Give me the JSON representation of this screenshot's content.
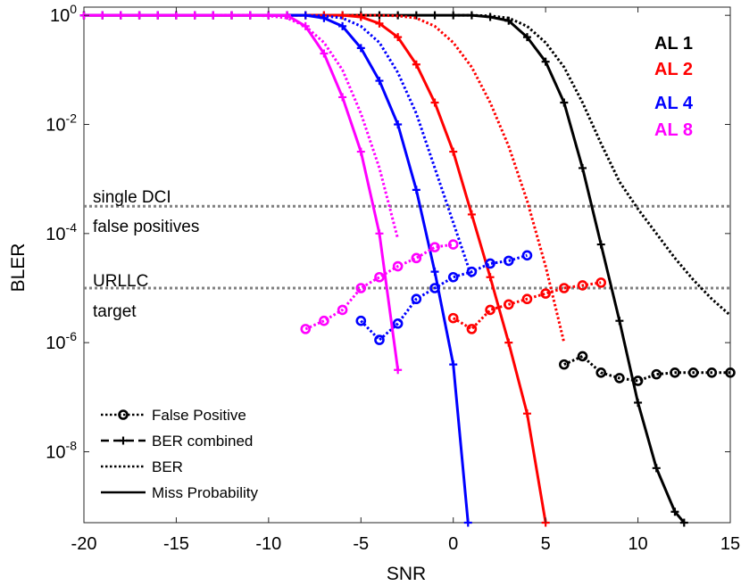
{
  "chart_data": {
    "type": "line",
    "title": "",
    "xlabel": "SNR",
    "ylabel": "BLER",
    "xlim": [
      -20,
      15
    ],
    "ylim_log10": [
      -9.3,
      0.15
    ],
    "yscale": "log",
    "grid": false,
    "x_ticks": [
      {
        "value": -20,
        "label": "-20"
      },
      {
        "value": -15,
        "label": "-15"
      },
      {
        "value": -10,
        "label": "-10"
      },
      {
        "value": -5,
        "label": "-5"
      },
      {
        "value": 0,
        "label": "0"
      },
      {
        "value": 5,
        "label": "5"
      },
      {
        "value": 10,
        "label": "10"
      },
      {
        "value": 15,
        "label": "15"
      }
    ],
    "y_ticks": [
      {
        "exp": 0,
        "base": "10",
        "sup": "0"
      },
      {
        "exp": -2,
        "base": "10",
        "sup": "-2"
      },
      {
        "exp": -4,
        "base": "10",
        "sup": "-4"
      },
      {
        "exp": -6,
        "base": "10",
        "sup": "-6"
      },
      {
        "exp": -8,
        "base": "10",
        "sup": "-8"
      }
    ],
    "colors": {
      "AL 1": "#000000",
      "AL 2": "#ff0000",
      "AL 4": "#0000ff",
      "AL 8": "#ff00ff",
      "reference": "#808080"
    },
    "aggregation_legend": {
      "position": "top-right",
      "entries": [
        {
          "label": "AL 1",
          "color": "#000000"
        },
        {
          "label": "AL 2",
          "color": "#ff0000"
        },
        {
          "label": "AL 4",
          "color": "#0000ff"
        },
        {
          "label": "AL 8",
          "color": "#ff00ff"
        }
      ]
    },
    "style_legend": {
      "position": "bottom-left",
      "entries": [
        {
          "label": "False Positive",
          "dash": "dotted",
          "marker": "circle"
        },
        {
          "label": "BER combined",
          "dash": "dashed",
          "marker": "plus"
        },
        {
          "label": "BER",
          "dash": "dotted",
          "marker": "none"
        },
        {
          "label": "Miss Probability",
          "dash": "solid",
          "marker": "none"
        }
      ]
    },
    "reference_lines": [
      {
        "y_log10": -3.5,
        "label_above": "single DCI",
        "label_below": "false positives"
      },
      {
        "y_log10": -5.0,
        "label_above": "URLLC",
        "label_below": "target"
      }
    ],
    "series": [
      {
        "name": "AL 1",
        "kind": "Miss Probability",
        "color": "#000000",
        "marker": "plus",
        "x": [
          -20,
          -19,
          -18,
          -17,
          -16,
          -15,
          -14,
          -13,
          -12,
          -11,
          -10,
          -9,
          -8,
          -7,
          -6,
          -5,
          -4,
          -3,
          -2,
          -1,
          0,
          1,
          2,
          3,
          4,
          5,
          6,
          7,
          8,
          9,
          10,
          11,
          12,
          12.5
        ],
        "y_log10": [
          0,
          0,
          0,
          0,
          0,
          0,
          0,
          0,
          0,
          0,
          0,
          0,
          0,
          0,
          0,
          0,
          0,
          0,
          0,
          0,
          0,
          0,
          -0.03,
          -0.1,
          -0.4,
          -0.85,
          -1.6,
          -2.8,
          -4.2,
          -5.6,
          -7.1,
          -8.3,
          -9.1,
          -9.3
        ]
      },
      {
        "name": "AL 1",
        "kind": "BER",
        "color": "#000000",
        "marker": "none",
        "x": [
          0,
          1,
          2,
          3,
          4,
          5,
          6,
          7,
          8,
          9,
          10,
          11,
          12,
          13,
          14,
          15
        ],
        "y_log10": [
          0,
          0,
          -0.01,
          -0.05,
          -0.2,
          -0.5,
          -0.95,
          -1.6,
          -2.35,
          -3.05,
          -3.55,
          -4.0,
          -4.45,
          -4.85,
          -5.2,
          -5.5
        ]
      },
      {
        "name": "AL 1",
        "kind": "False Positive",
        "color": "#000000",
        "marker": "circle",
        "x": [
          6,
          7,
          8,
          9,
          10,
          11,
          12,
          13,
          14,
          15
        ],
        "y_log10": [
          -6.4,
          -6.25,
          -6.55,
          -6.65,
          -6.7,
          -6.58,
          -6.55,
          -6.55,
          -6.55,
          -6.55
        ]
      },
      {
        "name": "AL 2",
        "kind": "Miss Probability",
        "color": "#ff0000",
        "marker": "plus",
        "x": [
          -20,
          -19,
          -18,
          -17,
          -16,
          -15,
          -14,
          -13,
          -12,
          -11,
          -10,
          -9,
          -8,
          -7,
          -6,
          -5,
          -4,
          -3,
          -2,
          -1,
          0,
          1,
          2,
          3,
          4,
          5
        ],
        "y_log10": [
          0,
          0,
          0,
          0,
          0,
          0,
          0,
          0,
          0,
          0,
          0,
          0,
          0,
          0,
          0,
          -0.03,
          -0.15,
          -0.4,
          -0.9,
          -1.6,
          -2.5,
          -3.65,
          -4.8,
          -6.0,
          -7.3,
          -9.3
        ]
      },
      {
        "name": "AL 2",
        "kind": "BER",
        "color": "#ff0000",
        "marker": "none",
        "x": [
          -6,
          -5,
          -4,
          -3,
          -2,
          -1,
          0,
          1,
          2,
          3,
          4,
          5,
          6
        ],
        "y_log10": [
          0,
          0,
          0,
          -0.01,
          -0.05,
          -0.2,
          -0.5,
          -0.95,
          -1.6,
          -2.4,
          -3.4,
          -4.6,
          -6.0
        ]
      },
      {
        "name": "AL 2",
        "kind": "False Positive",
        "color": "#ff0000",
        "marker": "circle",
        "x": [
          0,
          1,
          2,
          3,
          4,
          5,
          6,
          7,
          8
        ],
        "y_log10": [
          -5.55,
          -5.75,
          -5.4,
          -5.3,
          -5.2,
          -5.1,
          -5.0,
          -4.95,
          -4.9
        ]
      },
      {
        "name": "AL 4",
        "kind": "Miss Probability",
        "color": "#0000ff",
        "marker": "plus",
        "x": [
          -20,
          -19,
          -18,
          -17,
          -16,
          -15,
          -14,
          -13,
          -12,
          -11,
          -10,
          -9,
          -8,
          -7,
          -6,
          -5,
          -4,
          -3,
          -2,
          -1,
          0,
          0.8
        ],
        "y_log10": [
          0,
          0,
          0,
          0,
          0,
          0,
          0,
          0,
          0,
          0,
          0,
          0,
          0,
          -0.05,
          -0.2,
          -0.6,
          -1.2,
          -2.0,
          -3.2,
          -4.7,
          -6.4,
          -9.3
        ]
      },
      {
        "name": "AL 4",
        "kind": "BER",
        "color": "#0000ff",
        "marker": "none",
        "x": [
          -10,
          -9,
          -8,
          -7,
          -6,
          -5,
          -4,
          -3,
          -2,
          -1,
          0,
          1
        ],
        "y_log10": [
          0,
          0,
          0,
          -0.01,
          -0.05,
          -0.2,
          -0.5,
          -1.05,
          -1.8,
          -2.8,
          -3.8,
          -4.8
        ]
      },
      {
        "name": "AL 4",
        "kind": "False Positive",
        "color": "#0000ff",
        "marker": "circle",
        "x": [
          -5,
          -4,
          -3,
          -2,
          -1,
          0,
          1,
          2,
          3,
          4
        ],
        "y_log10": [
          -5.6,
          -5.95,
          -5.65,
          -5.2,
          -5.0,
          -4.8,
          -4.7,
          -4.55,
          -4.5,
          -4.4
        ]
      },
      {
        "name": "AL 8",
        "kind": "Miss Probability",
        "color": "#ff00ff",
        "marker": "plus",
        "x": [
          -20,
          -19,
          -18,
          -17,
          -16,
          -15,
          -14,
          -13,
          -12,
          -11,
          -10,
          -9,
          -8,
          -7,
          -6,
          -5,
          -4,
          -3
        ],
        "y_log10": [
          0,
          0,
          0,
          0,
          0,
          0,
          0,
          0,
          0,
          0,
          0,
          0,
          -0.2,
          -0.7,
          -1.5,
          -2.5,
          -4.0,
          -6.5
        ]
      },
      {
        "name": "AL 8",
        "kind": "BER",
        "color": "#ff00ff",
        "marker": "none",
        "x": [
          -13,
          -12,
          -11,
          -10,
          -9,
          -8,
          -7,
          -6,
          -5,
          -4,
          -3
        ],
        "y_log10": [
          0,
          0,
          0,
          -0.01,
          -0.05,
          -0.2,
          -0.5,
          -1.0,
          -1.8,
          -2.8,
          -4.1
        ]
      },
      {
        "name": "AL 8",
        "kind": "False Positive",
        "color": "#ff00ff",
        "marker": "circle",
        "x": [
          -8,
          -7,
          -6,
          -5,
          -4,
          -3,
          -2,
          -1,
          0
        ],
        "y_log10": [
          -5.75,
          -5.6,
          -5.4,
          -5.0,
          -4.8,
          -4.6,
          -4.45,
          -4.25,
          -4.2
        ]
      }
    ]
  }
}
